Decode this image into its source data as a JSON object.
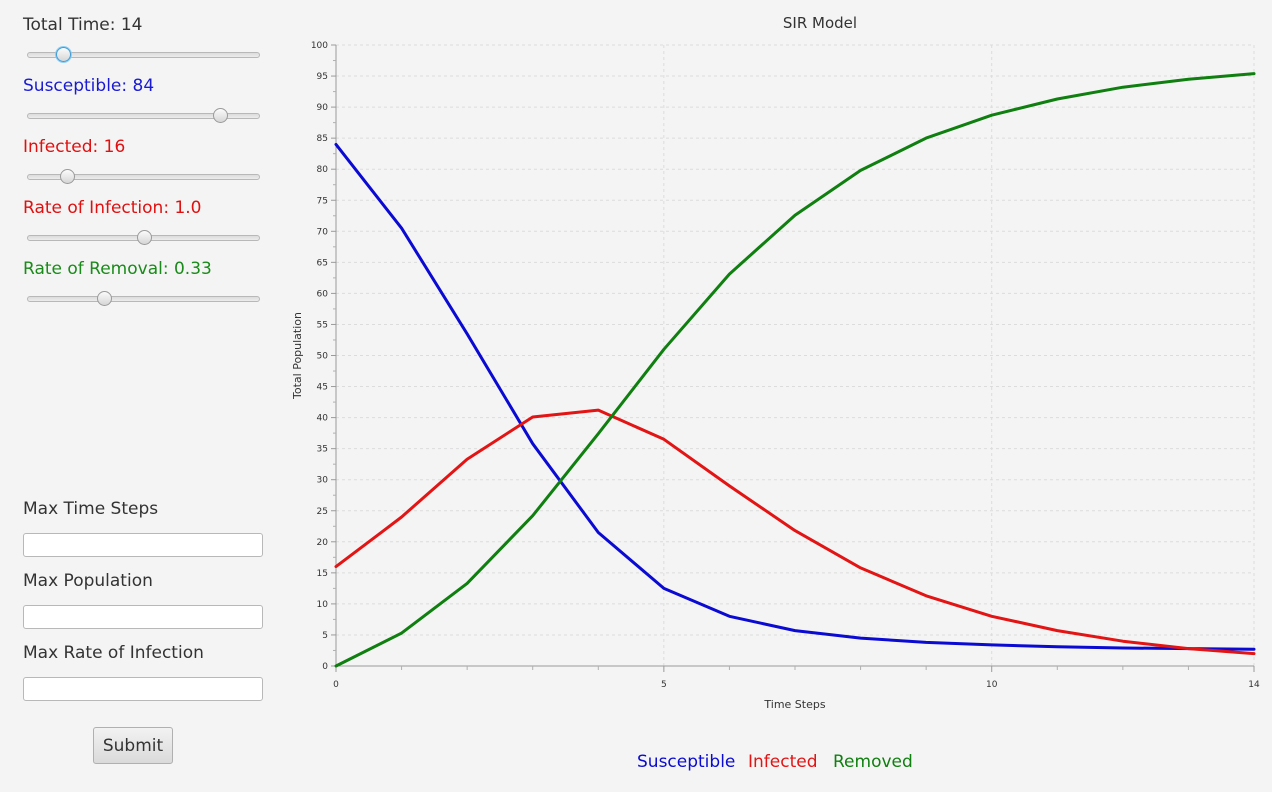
{
  "params": [
    {
      "label": "Total Time: 14",
      "color": "#333333",
      "fraction": 0.15
    },
    {
      "label": "Susceptible: 84",
      "color": "#1a1ad4",
      "fraction": 0.83
    },
    {
      "label": "Infected: 16",
      "color": "#e01010",
      "fraction": 0.17
    },
    {
      "label": "Rate of Infection: 1.0",
      "color": "#e01010",
      "fraction": 0.5
    },
    {
      "label": "Rate of Removal: 0.33",
      "color": "#1a8a1a",
      "fraction": 0.33
    }
  ],
  "form": {
    "max_time_label": "Max Time Steps",
    "max_time_value": "",
    "max_pop_label": "Max Population",
    "max_pop_value": "",
    "max_rate_label": "Max Rate of Infection",
    "max_rate_value": "",
    "submit_label": "Submit"
  },
  "chart_data": {
    "type": "line",
    "title": "SIR Model",
    "xlabel": "Time Steps",
    "ylabel": "Total Population",
    "xlim": [
      0,
      14
    ],
    "ylim": [
      0,
      100
    ],
    "x_ticks": [
      0,
      5,
      10,
      14
    ],
    "y_ticks": [
      0,
      5,
      10,
      15,
      20,
      25,
      30,
      35,
      40,
      45,
      50,
      55,
      60,
      65,
      70,
      75,
      80,
      85,
      90,
      95,
      100
    ],
    "grid": true,
    "legend_position": "bottom",
    "x": [
      0,
      1,
      2,
      3,
      4,
      5,
      6,
      7,
      8,
      9,
      10,
      11,
      12,
      13,
      14
    ],
    "series": [
      {
        "name": "Susceptible",
        "color": "#0a0ad2",
        "values": [
          84,
          70.5,
          53.5,
          35.8,
          21.5,
          12.5,
          8.0,
          5.7,
          4.5,
          3.8,
          3.4,
          3.1,
          2.9,
          2.8,
          2.7
        ]
      },
      {
        "name": "Infected",
        "color": "#e31414",
        "values": [
          16,
          24,
          33.3,
          40.1,
          41.2,
          36.5,
          29.0,
          21.8,
          15.8,
          11.3,
          8.0,
          5.7,
          4.0,
          2.8,
          2.0
        ]
      },
      {
        "name": "Removed",
        "color": "#0f7f0f",
        "values": [
          0,
          5.3,
          13.3,
          24.2,
          37.4,
          51.0,
          63.1,
          72.6,
          79.8,
          85.0,
          88.7,
          91.3,
          93.2,
          94.5,
          95.4
        ]
      }
    ]
  }
}
